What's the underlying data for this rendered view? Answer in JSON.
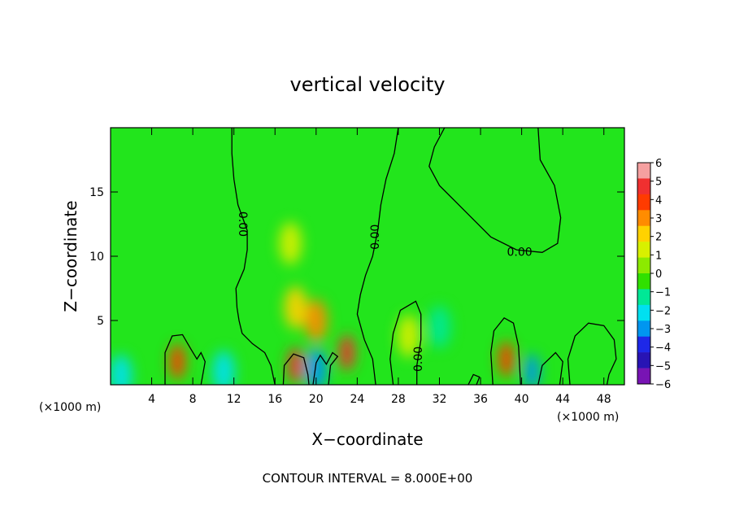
{
  "chart_data": {
    "type": "heatmap",
    "title": "vertical velocity",
    "xlabel": "X−coordinate",
    "ylabel": "Z−coordinate",
    "x_units_left": "(×1000 m)",
    "x_units_right": "(×1000 m)",
    "footer": "CONTOUR INTERVAL = 8.000E+00",
    "xlim": [
      0,
      50
    ],
    "ylim": [
      0,
      20
    ],
    "x_ticks": [
      4,
      8,
      12,
      16,
      20,
      24,
      28,
      32,
      36,
      40,
      44,
      48
    ],
    "y_ticks": [
      5,
      10,
      15
    ],
    "colorbar": {
      "levels": [
        6,
        5,
        4,
        3,
        2,
        1,
        0,
        -1,
        -2,
        -3,
        -4,
        -5,
        -6
      ],
      "level_labels": [
        "6",
        "5",
        "4",
        "3",
        "2",
        "1",
        "0",
        "−1",
        "−2",
        "−3",
        "−4",
        "−5",
        "−6"
      ],
      "colors": [
        "#f5a0a0",
        "#f03030",
        "#ff3b00",
        "#ff8c00",
        "#ffd200",
        "#d8f000",
        "#8cea00",
        "#30e000",
        "#00e896",
        "#00e0f0",
        "#0096f0",
        "#1e28e8",
        "#2814b4",
        "#7814b4"
      ]
    },
    "background_color": "#22e51c",
    "features": [
      {
        "x": 6.5,
        "z": 1.8,
        "value": 4.2
      },
      {
        "x": 18.0,
        "z": 1.5,
        "value": 5.0
      },
      {
        "x": 20.0,
        "z": 1.2,
        "value": -3.5
      },
      {
        "x": 20.0,
        "z": 5.0,
        "value": 3.5
      },
      {
        "x": 18.0,
        "z": 6.0,
        "value": 2.5
      },
      {
        "x": 23.0,
        "z": 2.5,
        "value": 5.0
      },
      {
        "x": 29.0,
        "z": 3.8,
        "value": 1.5
      },
      {
        "x": 32.0,
        "z": 4.5,
        "value": -2.0
      },
      {
        "x": 38.5,
        "z": 2.0,
        "value": 4.5
      },
      {
        "x": 41.0,
        "z": 1.0,
        "value": -4.0
      },
      {
        "x": 11.0,
        "z": 1.0,
        "value": -2.5
      },
      {
        "x": 1.0,
        "z": 0.7,
        "value": -2.5
      },
      {
        "x": 17.5,
        "z": 11.0,
        "value": 1.0
      }
    ],
    "contours": [
      {
        "label": "0.00",
        "points": [
          [
            11.8,
            20
          ],
          [
            11.8,
            18
          ],
          [
            12.0,
            16
          ],
          [
            12.4,
            14
          ],
          [
            13.3,
            12
          ],
          [
            13.3,
            10.5
          ],
          [
            13.0,
            9
          ],
          [
            12.2,
            7.5
          ],
          [
            12.3,
            6
          ],
          [
            12.5,
            5
          ],
          [
            12.8,
            4
          ],
          [
            13.8,
            3.2
          ],
          [
            15.0,
            2.5
          ],
          [
            15.6,
            1.5
          ],
          [
            16.0,
            0
          ]
        ],
        "label_at": [
          12.8,
          12.5
        ],
        "label_angle": 90
      },
      {
        "label": "0.00",
        "points": [
          [
            28.0,
            20
          ],
          [
            27.6,
            18
          ],
          [
            26.8,
            16
          ],
          [
            26.3,
            14
          ],
          [
            26.0,
            12
          ],
          [
            25.5,
            10
          ],
          [
            24.8,
            8.5
          ],
          [
            24.3,
            7
          ],
          [
            24.0,
            5.5
          ],
          [
            24.7,
            3.5
          ],
          [
            25.5,
            2
          ],
          [
            25.8,
            0
          ]
        ],
        "label_at": [
          25.8,
          11.5
        ],
        "label_angle": -90
      },
      {
        "label": "0.00",
        "points": [
          [
            32.5,
            20
          ],
          [
            31.5,
            18.5
          ],
          [
            31.0,
            17
          ],
          [
            32.0,
            15.5
          ],
          [
            34.5,
            13.5
          ],
          [
            37.0,
            11.5
          ],
          [
            39.5,
            10.5
          ],
          [
            42.0,
            10.3
          ],
          [
            43.5,
            11
          ],
          [
            43.8,
            13
          ],
          [
            43.2,
            15.5
          ],
          [
            41.8,
            17.5
          ],
          [
            41.6,
            20
          ]
        ],
        "label_at": [
          39.8,
          10.3
        ],
        "label_angle": 0
      },
      {
        "label": "0.00",
        "points": [
          [
            27.5,
            0
          ],
          [
            27.2,
            2
          ],
          [
            27.5,
            4
          ],
          [
            28.2,
            5.8
          ],
          [
            29.7,
            6.5
          ],
          [
            30.2,
            5.5
          ],
          [
            30.2,
            3.5
          ],
          [
            29.8,
            1.5
          ],
          [
            29.8,
            0
          ]
        ],
        "label_at": [
          30.0,
          2.0
        ],
        "label_angle": -90
      },
      {
        "label": "",
        "points": [
          [
            5.3,
            0
          ],
          [
            5.3,
            2.5
          ],
          [
            6.0,
            3.8
          ],
          [
            7.0,
            3.9
          ],
          [
            7.8,
            2.8
          ],
          [
            8.4,
            2.0
          ],
          [
            8.8,
            2.5
          ],
          [
            9.2,
            1.8
          ],
          [
            8.8,
            0
          ]
        ],
        "label_at": null,
        "label_angle": 0
      },
      {
        "label": "",
        "points": [
          [
            37.2,
            0
          ],
          [
            37.0,
            2.5
          ],
          [
            37.3,
            4.2
          ],
          [
            38.3,
            5.2
          ],
          [
            39.2,
            4.8
          ],
          [
            39.7,
            3.0
          ],
          [
            39.9,
            0
          ]
        ],
        "label_at": null,
        "label_angle": 0
      },
      {
        "label": "",
        "points": [
          [
            44.7,
            0
          ],
          [
            44.5,
            2.0
          ],
          [
            45.2,
            3.8
          ],
          [
            46.5,
            4.8
          ],
          [
            48.0,
            4.6
          ],
          [
            49.0,
            3.5
          ],
          [
            49.2,
            2.0
          ],
          [
            48.5,
            0.8
          ],
          [
            48.3,
            0
          ]
        ],
        "label_at": null,
        "label_angle": 0
      },
      {
        "label": "",
        "points": [
          [
            41.6,
            0
          ],
          [
            42.0,
            1.5
          ],
          [
            43.3,
            2.5
          ],
          [
            44.0,
            1.8
          ],
          [
            43.7,
            0
          ]
        ],
        "label_at": null,
        "label_angle": 0
      },
      {
        "label": "",
        "points": [
          [
            16.8,
            0
          ],
          [
            16.9,
            1.5
          ],
          [
            17.8,
            2.4
          ],
          [
            18.8,
            2.1
          ],
          [
            19.2,
            0.8
          ],
          [
            19.3,
            0
          ]
        ],
        "label_at": null,
        "label_angle": 0
      },
      {
        "label": "",
        "points": [
          [
            21.2,
            0
          ],
          [
            21.4,
            1.5
          ],
          [
            22.1,
            2.2
          ],
          [
            21.6,
            2.5
          ],
          [
            21.0,
            1.6
          ],
          [
            20.4,
            2.3
          ],
          [
            20.0,
            1.7
          ],
          [
            19.7,
            0
          ]
        ],
        "label_at": null,
        "label_angle": 0
      },
      {
        "label": "",
        "points": [
          [
            34.8,
            0
          ],
          [
            35.3,
            0.8
          ],
          [
            35.9,
            0.6
          ],
          [
            35.6,
            0
          ]
        ],
        "label_at": null,
        "label_angle": 0
      }
    ]
  }
}
